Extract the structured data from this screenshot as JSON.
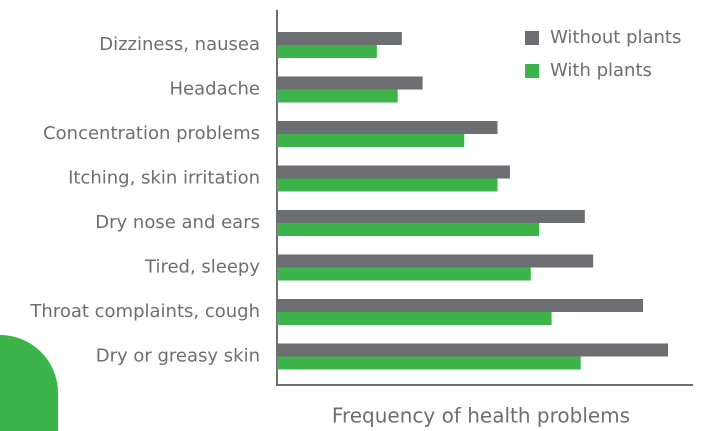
{
  "chart_data": {
    "type": "hbar",
    "x_label": "Frequency of health problems",
    "categories": [
      "Dizziness, nausea",
      "Headache",
      "Concentration problems",
      "Itching, skin irritation",
      "Dry nose and ears",
      "Tired, sleepy",
      "Throat complaints, cough",
      "Dry or greasy skin"
    ],
    "series": [
      {
        "name": "Without plants",
        "color": "#6d6e71",
        "values": [
          30,
          35,
          53,
          56,
          74,
          76,
          88,
          94
        ]
      },
      {
        "name": "With plants",
        "color": "#3cb44b",
        "values": [
          24,
          29,
          45,
          53,
          63,
          61,
          66,
          73
        ]
      }
    ],
    "xlim": [
      0,
      100
    ],
    "legend": "upper right"
  }
}
